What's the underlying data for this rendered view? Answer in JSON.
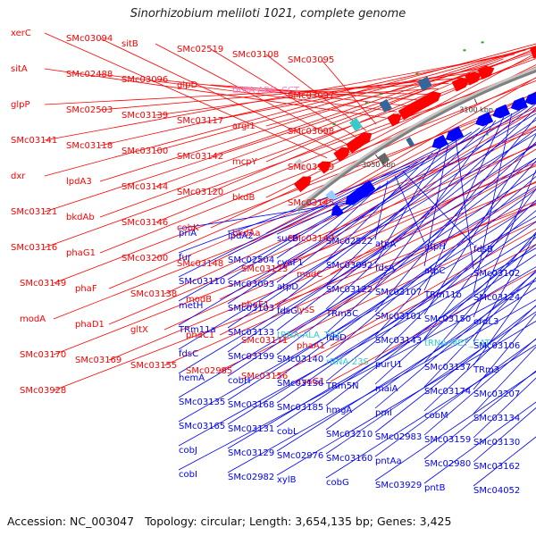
{
  "title": "Sinorhizobium meliloti 1021, complete genome",
  "footer": {
    "accession": "Accession: NC_003047",
    "info": "Topology: circular; Length: 3,654,135 bp; Genes: 3,425"
  },
  "colors": {
    "forward": "#ff0000",
    "reverse": "#0000ff",
    "rna": "#ff77cc",
    "rna_reverse": "#33cccc",
    "backbone": "#808080"
  },
  "ticks": [
    "3050 kbp",
    "3100 kbp",
    "3150 kbp",
    "3200 kbp",
    "3250 kbp",
    "3300 kbp",
    "3350 kbp"
  ],
  "forward_labels": [
    "xerC",
    "SMc03094",
    "sitB",
    "SMc02519",
    "SMc03108",
    "SMc03095",
    "sitA",
    "SMc02488",
    "SMc03096",
    "glpD",
    "tRNA-ARG_CCT",
    "SMc03097",
    "glpP",
    "SMc02503",
    "SMc03139",
    "SMc03117",
    "argI1",
    "SMc03098",
    "SMc03141",
    "SMc03118",
    "SMc03100",
    "SMc03142",
    "mcpY",
    "SMc03119",
    "dxr",
    "lpdA3",
    "SMc03144",
    "SMc03120",
    "bkdB",
    "SMc03145",
    "SMc03121",
    "bkdAb",
    "SMc03146",
    "cobK",
    "bkdAa",
    "SMc03147",
    "SMc03116",
    "phaG1",
    "SMc03200",
    "SMc03148",
    "SMc03123",
    "modC",
    "SMc03149",
    "phaF",
    "SMc03138",
    "modB",
    "phaE1",
    "lysS",
    "modA",
    "phaD1",
    "gltX",
    "phaC1",
    "SMc03171",
    "phaA1",
    "SMc03170",
    "SMc03169",
    "SMc03155",
    "SMc02985",
    "SMc03156",
    "cyaG1",
    "SMc03928"
  ],
  "reverse_labels": [
    "priA",
    "lpdA2",
    "sucB",
    "SMc02522",
    "atpA",
    "atpH",
    "fdsB",
    "fur",
    "SMc02504",
    "cyaF1",
    "SMc03092",
    "fdsA",
    "atpC",
    "SMc03102",
    "SMc03110",
    "SMc03093",
    "atpD",
    "SMc03122",
    "SMc03107",
    "TRm11b",
    "SMc03124",
    "metH",
    "SMc03103",
    "fdsG",
    "TRm5C",
    "SMc03101",
    "SMc03150",
    "ordL3",
    "TRm11a",
    "SMc03133",
    "tRNA-ALA_TGC",
    "fdsD",
    "SMc03143",
    "tRNA-MET_CAT",
    "SMc03106",
    "fdsC",
    "SMc03199",
    "SMc03140",
    "rRNA-23S",
    "purU1",
    "SMc03137",
    "TRm3",
    "hemA",
    "cobH",
    "SMc03136",
    "TRm5N",
    "maiA",
    "SMc03174",
    "SMc03207",
    "SMc03135",
    "SMc03168",
    "SMc03185",
    "hmgA",
    "pmi",
    "cobM",
    "SMc03134",
    "SMc03165",
    "SMc03131",
    "cobL",
    "SMc03210",
    "SMc02983",
    "SMc03159",
    "SMc03130",
    "cobJ",
    "SMc03129",
    "SMc02976",
    "SMc03160",
    "pntAa",
    "SMc02980",
    "SMc03162",
    "cobI",
    "SMc02982",
    "xylB",
    "cobG",
    "SMc03929",
    "pntB",
    "SMc04052"
  ]
}
